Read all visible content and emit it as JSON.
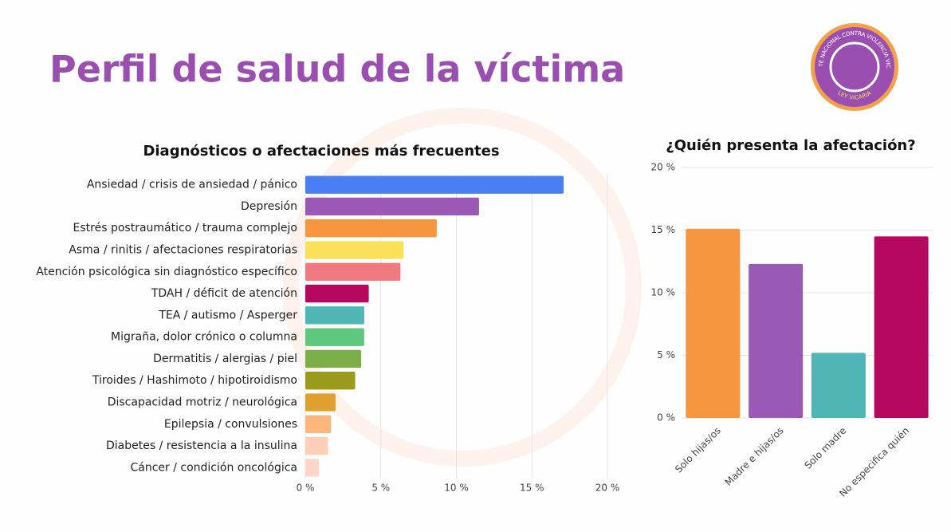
{
  "title": "Perfil de salud de la víctima",
  "logo": {
    "text": "FRENTE NACIONAL CONTRA VIOLENCIA VICARIA",
    "subtext": "LEY VICARIA"
  },
  "chart_data": [
    {
      "type": "hbar",
      "title": "Diagnósticos o afectaciones más frecuentes",
      "categories": [
        "Ansiedad / crisis de ansiedad / pánico",
        "Depresión",
        "Estrés postraumático / trauma complejo",
        "Asma / rinitis / afectaciones respiratorias",
        "Atención psicológica sin diagnóstico específico",
        "TDAH / déficit de atención",
        "TEA / autismo / Asperger",
        "Migraña, dolor crónico o columna",
        "Dermatitis / alergias / piel",
        "Tiroides / Hashimoto / hipotiroidismo",
        "Discapacidad motriz / neurológica",
        "Epilepsia / convulsiones",
        "Diabetes / resistencia a la insulina",
        "Cáncer / condición oncológica"
      ],
      "values": [
        17.1,
        11.5,
        8.7,
        6.5,
        6.3,
        4.2,
        3.9,
        3.9,
        3.7,
        3.3,
        2.0,
        1.7,
        1.5,
        0.9
      ],
      "colors": [
        "#4a7ef5",
        "#9b59b6",
        "#f7953f",
        "#fde05a",
        "#f07a80",
        "#b5095f",
        "#4fb5b5",
        "#5ec97e",
        "#7cae47",
        "#9a9a1c",
        "#e0a030",
        "#ffb67a",
        "#ffcfba",
        "#ffd6c8"
      ],
      "xlim": [
        0,
        20
      ],
      "xticks": [
        {
          "value": 0,
          "label": "0 %"
        },
        {
          "value": 5,
          "label": "5 %"
        },
        {
          "value": 10,
          "label": "10 %"
        },
        {
          "value": 15,
          "label": "15 %"
        },
        {
          "value": 20,
          "label": "20 %"
        }
      ],
      "grid": true
    },
    {
      "type": "bar",
      "title": "¿Quién presenta la afectación?",
      "categories": [
        "Solo hijas/os",
        "Madre e hijas/os",
        "Solo madre",
        "No especifica quién"
      ],
      "values": [
        15.1,
        12.3,
        5.2,
        14.5
      ],
      "colors": [
        "#f7953f",
        "#9b59b6",
        "#4fb5b5",
        "#b5095f"
      ],
      "ylim": [
        0,
        20
      ],
      "yticks": [
        {
          "value": 0,
          "label": "0 %"
        },
        {
          "value": 5,
          "label": "5 %"
        },
        {
          "value": 10,
          "label": "10 %"
        },
        {
          "value": 15,
          "label": "15 %"
        },
        {
          "value": 20,
          "label": "20 %"
        }
      ],
      "grid": true
    }
  ]
}
